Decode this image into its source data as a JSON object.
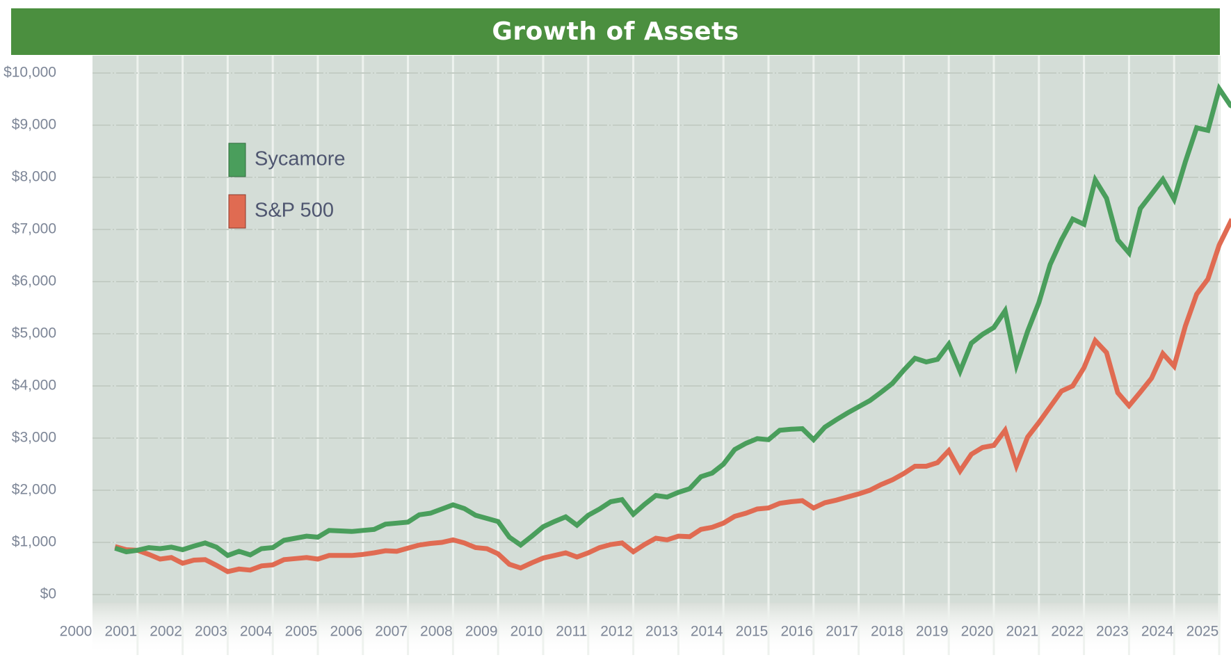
{
  "chart_data": {
    "type": "line",
    "title": "Growth of Assets",
    "xlabel": "",
    "ylabel": "",
    "xlim": [
      2000,
      2025
    ],
    "ylim": [
      0,
      10000
    ],
    "grid": true,
    "legend_position": "top-left",
    "y_ticks": [
      "$0",
      "$1,000",
      "$2,000",
      "$3,000",
      "$4,000",
      "$5,000",
      "$6,000",
      "$7,000",
      "$8,000",
      "$9,000",
      "$10,000"
    ],
    "y_tick_values": [
      0,
      1000,
      2000,
      3000,
      4000,
      5000,
      6000,
      7000,
      8000,
      9000,
      10000
    ],
    "x_ticks": [
      "2000",
      "2001",
      "2002",
      "2003",
      "2004",
      "2005",
      "2006",
      "2007",
      "2008",
      "2009",
      "2010",
      "2011",
      "2012",
      "2013",
      "2014",
      "2015",
      "2016",
      "2017",
      "2018",
      "2019",
      "2020",
      "2021",
      "2022",
      "2023",
      "2024",
      "2025"
    ],
    "x_tick_values": [
      2000,
      2001,
      2002,
      2003,
      2004,
      2005,
      2006,
      2007,
      2008,
      2009,
      2010,
      2011,
      2012,
      2013,
      2014,
      2015,
      2016,
      2017,
      2018,
      2019,
      2020,
      2021,
      2022,
      2023,
      2024,
      2025
    ],
    "series": [
      {
        "name": "Sycamore",
        "color": "#4a9e5c",
        "points": [
          [
            2000.5,
            890
          ],
          [
            2000.75,
            820
          ],
          [
            2001.0,
            850
          ],
          [
            2001.25,
            900
          ],
          [
            2001.5,
            880
          ],
          [
            2001.75,
            910
          ],
          [
            2002.0,
            860
          ],
          [
            2002.25,
            930
          ],
          [
            2002.5,
            990
          ],
          [
            2002.75,
            910
          ],
          [
            2003.0,
            750
          ],
          [
            2003.25,
            830
          ],
          [
            2003.5,
            760
          ],
          [
            2003.75,
            880
          ],
          [
            2004.0,
            900
          ],
          [
            2004.25,
            1040
          ],
          [
            2004.5,
            1080
          ],
          [
            2004.75,
            1120
          ],
          [
            2005.0,
            1100
          ],
          [
            2005.25,
            1230
          ],
          [
            2005.5,
            1220
          ],
          [
            2005.75,
            1210
          ],
          [
            2006.0,
            1230
          ],
          [
            2006.25,
            1250
          ],
          [
            2006.5,
            1350
          ],
          [
            2006.75,
            1370
          ],
          [
            2007.0,
            1390
          ],
          [
            2007.25,
            1530
          ],
          [
            2007.5,
            1560
          ],
          [
            2007.75,
            1640
          ],
          [
            2008.0,
            1720
          ],
          [
            2008.25,
            1650
          ],
          [
            2008.5,
            1520
          ],
          [
            2008.75,
            1460
          ],
          [
            2009.0,
            1400
          ],
          [
            2009.25,
            1100
          ],
          [
            2009.5,
            950
          ],
          [
            2009.75,
            1120
          ],
          [
            2010.0,
            1300
          ],
          [
            2010.25,
            1400
          ],
          [
            2010.5,
            1490
          ],
          [
            2010.75,
            1330
          ],
          [
            2011.0,
            1520
          ],
          [
            2011.25,
            1640
          ],
          [
            2011.5,
            1780
          ],
          [
            2011.75,
            1820
          ],
          [
            2012.0,
            1540
          ],
          [
            2012.25,
            1730
          ],
          [
            2012.5,
            1900
          ],
          [
            2012.75,
            1870
          ],
          [
            2013.0,
            1960
          ],
          [
            2013.25,
            2030
          ],
          [
            2013.5,
            2260
          ],
          [
            2013.75,
            2330
          ],
          [
            2014.0,
            2500
          ],
          [
            2014.25,
            2780
          ],
          [
            2014.5,
            2900
          ],
          [
            2014.75,
            2990
          ],
          [
            2015.0,
            2970
          ],
          [
            2015.25,
            3150
          ],
          [
            2015.5,
            3170
          ],
          [
            2015.75,
            3180
          ],
          [
            2016.0,
            2970
          ],
          [
            2016.25,
            3210
          ],
          [
            2016.5,
            3350
          ],
          [
            2016.75,
            3480
          ],
          [
            2017.0,
            3600
          ],
          [
            2017.25,
            3720
          ],
          [
            2017.5,
            3880
          ],
          [
            2017.75,
            4050
          ],
          [
            2018.0,
            4300
          ],
          [
            2018.25,
            4530
          ],
          [
            2018.5,
            4460
          ],
          [
            2018.75,
            4510
          ],
          [
            2019.0,
            4800
          ],
          [
            2019.25,
            4280
          ],
          [
            2019.5,
            4820
          ],
          [
            2019.75,
            4990
          ],
          [
            2020.0,
            5120
          ],
          [
            2020.25,
            5440
          ],
          [
            2020.5,
            4400
          ],
          [
            2020.75,
            5050
          ],
          [
            2021.0,
            5600
          ],
          [
            2021.25,
            6330
          ],
          [
            2021.5,
            6800
          ],
          [
            2021.75,
            7200
          ],
          [
            2022.0,
            7100
          ],
          [
            2022.25,
            7950
          ],
          [
            2022.5,
            7600
          ],
          [
            2022.75,
            6800
          ],
          [
            2023.0,
            6550
          ],
          [
            2023.25,
            7400
          ],
          [
            2023.5,
            7680
          ],
          [
            2023.75,
            7960
          ],
          [
            2024.0,
            7580
          ],
          [
            2024.25,
            8300
          ],
          [
            2024.5,
            8950
          ],
          [
            2024.75,
            8900
          ],
          [
            2025.0,
            9700
          ],
          [
            2025.25,
            9380
          ],
          [
            2025.5,
            9270
          ]
        ]
      },
      {
        "name": "S&P 500",
        "color": "#e06b52",
        "points": [
          [
            2000.5,
            920
          ],
          [
            2000.75,
            860
          ],
          [
            2001.0,
            850
          ],
          [
            2001.25,
            770
          ],
          [
            2001.5,
            680
          ],
          [
            2001.75,
            710
          ],
          [
            2002.0,
            600
          ],
          [
            2002.25,
            660
          ],
          [
            2002.5,
            670
          ],
          [
            2002.75,
            560
          ],
          [
            2003.0,
            440
          ],
          [
            2003.25,
            490
          ],
          [
            2003.5,
            470
          ],
          [
            2003.75,
            550
          ],
          [
            2004.0,
            570
          ],
          [
            2004.25,
            670
          ],
          [
            2004.5,
            690
          ],
          [
            2004.75,
            710
          ],
          [
            2005.0,
            680
          ],
          [
            2005.25,
            750
          ],
          [
            2005.5,
            750
          ],
          [
            2005.75,
            750
          ],
          [
            2006.0,
            770
          ],
          [
            2006.25,
            800
          ],
          [
            2006.5,
            840
          ],
          [
            2006.75,
            830
          ],
          [
            2007.0,
            890
          ],
          [
            2007.25,
            950
          ],
          [
            2007.5,
            980
          ],
          [
            2007.75,
            1000
          ],
          [
            2008.0,
            1050
          ],
          [
            2008.25,
            990
          ],
          [
            2008.5,
            900
          ],
          [
            2008.75,
            880
          ],
          [
            2009.0,
            780
          ],
          [
            2009.25,
            580
          ],
          [
            2009.5,
            510
          ],
          [
            2009.75,
            610
          ],
          [
            2010.0,
            700
          ],
          [
            2010.25,
            750
          ],
          [
            2010.5,
            800
          ],
          [
            2010.75,
            720
          ],
          [
            2011.0,
            800
          ],
          [
            2011.25,
            900
          ],
          [
            2011.5,
            960
          ],
          [
            2011.75,
            990
          ],
          [
            2012.0,
            820
          ],
          [
            2012.25,
            960
          ],
          [
            2012.5,
            1080
          ],
          [
            2012.75,
            1050
          ],
          [
            2013.0,
            1120
          ],
          [
            2013.25,
            1110
          ],
          [
            2013.5,
            1250
          ],
          [
            2013.75,
            1290
          ],
          [
            2014.0,
            1370
          ],
          [
            2014.25,
            1500
          ],
          [
            2014.5,
            1560
          ],
          [
            2014.75,
            1640
          ],
          [
            2015.0,
            1660
          ],
          [
            2015.25,
            1750
          ],
          [
            2015.5,
            1780
          ],
          [
            2015.75,
            1800
          ],
          [
            2016.0,
            1660
          ],
          [
            2016.25,
            1760
          ],
          [
            2016.5,
            1810
          ],
          [
            2016.75,
            1870
          ],
          [
            2017.0,
            1930
          ],
          [
            2017.25,
            2000
          ],
          [
            2017.5,
            2110
          ],
          [
            2017.75,
            2200
          ],
          [
            2018.0,
            2320
          ],
          [
            2018.25,
            2460
          ],
          [
            2018.5,
            2460
          ],
          [
            2018.75,
            2530
          ],
          [
            2019.0,
            2760
          ],
          [
            2019.25,
            2370
          ],
          [
            2019.5,
            2690
          ],
          [
            2019.75,
            2820
          ],
          [
            2020.0,
            2860
          ],
          [
            2020.25,
            3150
          ],
          [
            2020.5,
            2470
          ],
          [
            2020.75,
            3020
          ],
          [
            2021.0,
            3300
          ],
          [
            2021.25,
            3600
          ],
          [
            2021.5,
            3900
          ],
          [
            2021.75,
            4000
          ],
          [
            2022.0,
            4350
          ],
          [
            2022.25,
            4870
          ],
          [
            2022.5,
            4640
          ],
          [
            2022.75,
            3870
          ],
          [
            2023.0,
            3620
          ],
          [
            2023.25,
            3880
          ],
          [
            2023.5,
            4150
          ],
          [
            2023.75,
            4620
          ],
          [
            2024.0,
            4380
          ],
          [
            2024.25,
            5150
          ],
          [
            2024.5,
            5760
          ],
          [
            2024.75,
            6050
          ],
          [
            2025.0,
            6700
          ],
          [
            2025.25,
            7140
          ],
          [
            2025.5,
            6900
          ]
        ]
      }
    ]
  }
}
